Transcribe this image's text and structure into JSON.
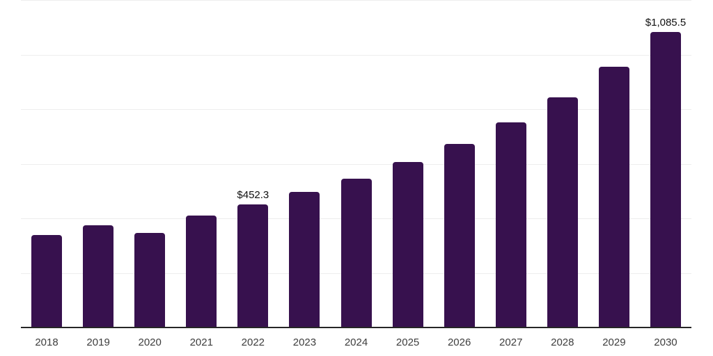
{
  "chart_data": {
    "type": "bar",
    "title": "",
    "xlabel": "",
    "ylabel": "",
    "categories": [
      "2018",
      "2019",
      "2020",
      "2021",
      "2022",
      "2023",
      "2024",
      "2025",
      "2026",
      "2027",
      "2028",
      "2029",
      "2030"
    ],
    "values": [
      341,
      376,
      348,
      414,
      452.3,
      499,
      549,
      610,
      676,
      755,
      846,
      959,
      1085.5
    ],
    "value_labels": {
      "2022": "$452.3",
      "2030": "$1,085.5"
    },
    "ylim": [
      0,
      1200
    ],
    "gridline_step": 200,
    "grid": true,
    "legend": false,
    "y_axis_tick_labels_visible": false,
    "colors": {
      "bar": "#37114E",
      "gridline": "#ededed",
      "axis_line": "#262626",
      "tick_label": "#3d3d3d",
      "value_label": "#111111",
      "background": "#ffffff"
    }
  }
}
